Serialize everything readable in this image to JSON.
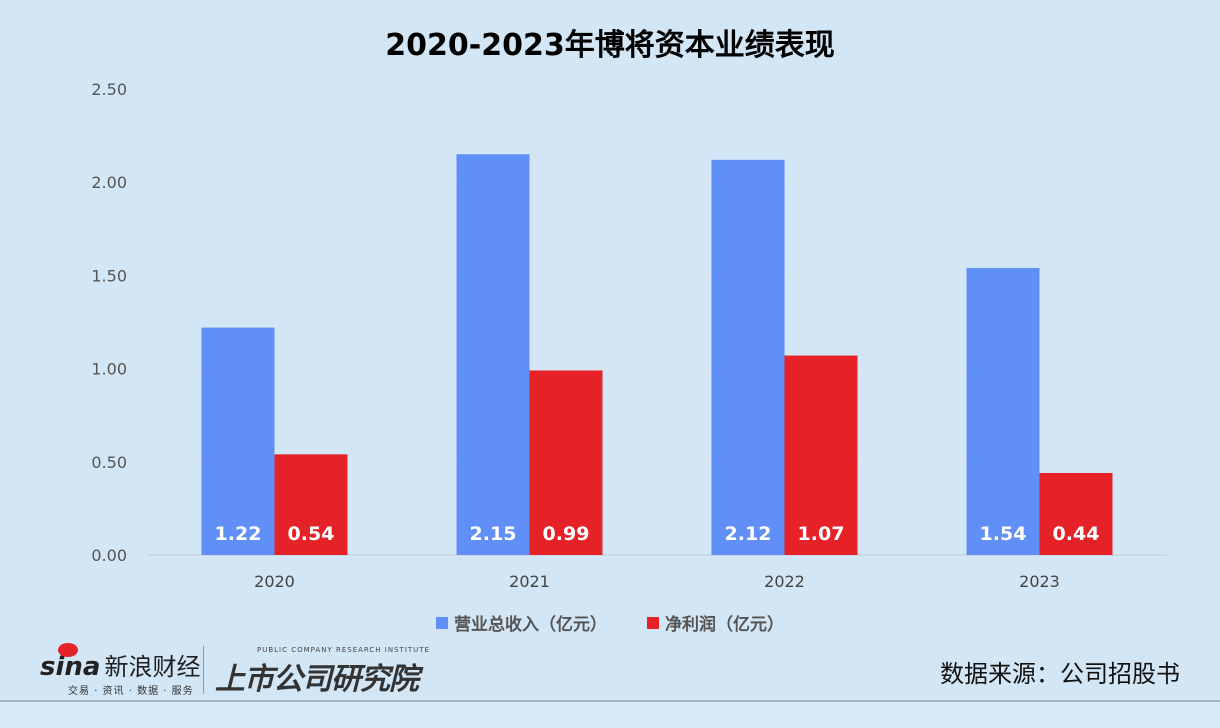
{
  "chart_data": {
    "type": "bar",
    "title": "2020-2023年博将资本业绩表现",
    "categories": [
      "2020",
      "2021",
      "2022",
      "2023"
    ],
    "series": [
      {
        "name": "营业总收入（亿元）",
        "values": [
          1.22,
          2.15,
          2.12,
          1.54
        ],
        "color": "#5f8ff7"
      },
      {
        "name": "净利润（亿元）",
        "values": [
          0.54,
          0.99,
          1.07,
          0.44
        ],
        "color": "#e52227"
      }
    ],
    "ylim": [
      0,
      2.5
    ],
    "yticks": [
      "0.00",
      "0.50",
      "1.00",
      "1.50",
      "2.00",
      "2.50"
    ],
    "grid": true,
    "legend": "bottom",
    "data_labels": true
  },
  "footer": {
    "source": "数据来源：公司招股书",
    "logo_sina": "sina",
    "logo_sina_name": "新浪财经",
    "logo_sina_tagline": "交易 · 资讯 · 数据 · 服务",
    "logo_institute": "上市公司研究院",
    "logo_institute_en": "PUBLIC COMPANY RESEARCH INSTITUTE"
  }
}
